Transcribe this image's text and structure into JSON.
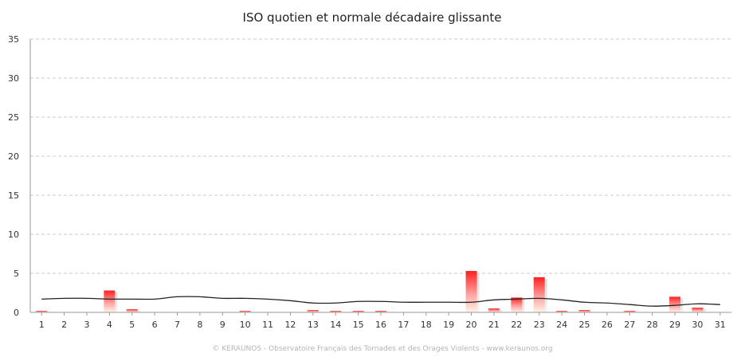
{
  "chart_data": {
    "type": "bar",
    "title": "ISO quotien et normale décadaire glissante",
    "xlabel": "",
    "ylabel": "",
    "ylim": [
      0,
      35
    ],
    "yticks": [
      0,
      5,
      10,
      15,
      20,
      25,
      30,
      35
    ],
    "grid": true,
    "categories": [
      "1",
      "2",
      "3",
      "4",
      "5",
      "6",
      "7",
      "8",
      "9",
      "10",
      "11",
      "12",
      "13",
      "14",
      "15",
      "16",
      "17",
      "18",
      "19",
      "20",
      "21",
      "22",
      "23",
      "24",
      "25",
      "26",
      "27",
      "28",
      "29",
      "30",
      "31"
    ],
    "series": [
      {
        "type": "bar",
        "values": [
          0.1,
          0,
          0,
          2.8,
          0.4,
          0,
          0,
          0,
          0,
          0.1,
          0,
          0,
          0.3,
          0.2,
          0.2,
          0.1,
          0,
          0,
          0,
          5.3,
          0.5,
          1.9,
          4.5,
          0.2,
          0.3,
          0,
          0.1,
          0,
          2.0,
          0.6,
          0
        ],
        "color_top": "#ff1f1f",
        "color_bottom": "#fff4e6"
      },
      {
        "type": "line",
        "values": [
          1.7,
          1.8,
          1.8,
          1.7,
          1.7,
          1.7,
          2.0,
          2.0,
          1.8,
          1.8,
          1.7,
          1.5,
          1.2,
          1.2,
          1.4,
          1.4,
          1.3,
          1.3,
          1.3,
          1.3,
          1.6,
          1.7,
          1.8,
          1.6,
          1.3,
          1.2,
          1.0,
          0.8,
          0.9,
          1.1,
          1.0
        ],
        "color": "#222222"
      }
    ]
  },
  "credit": "© KERAUNOS - Observatoire Français des Tornades et des Orages Violents - www.keraunos.org"
}
